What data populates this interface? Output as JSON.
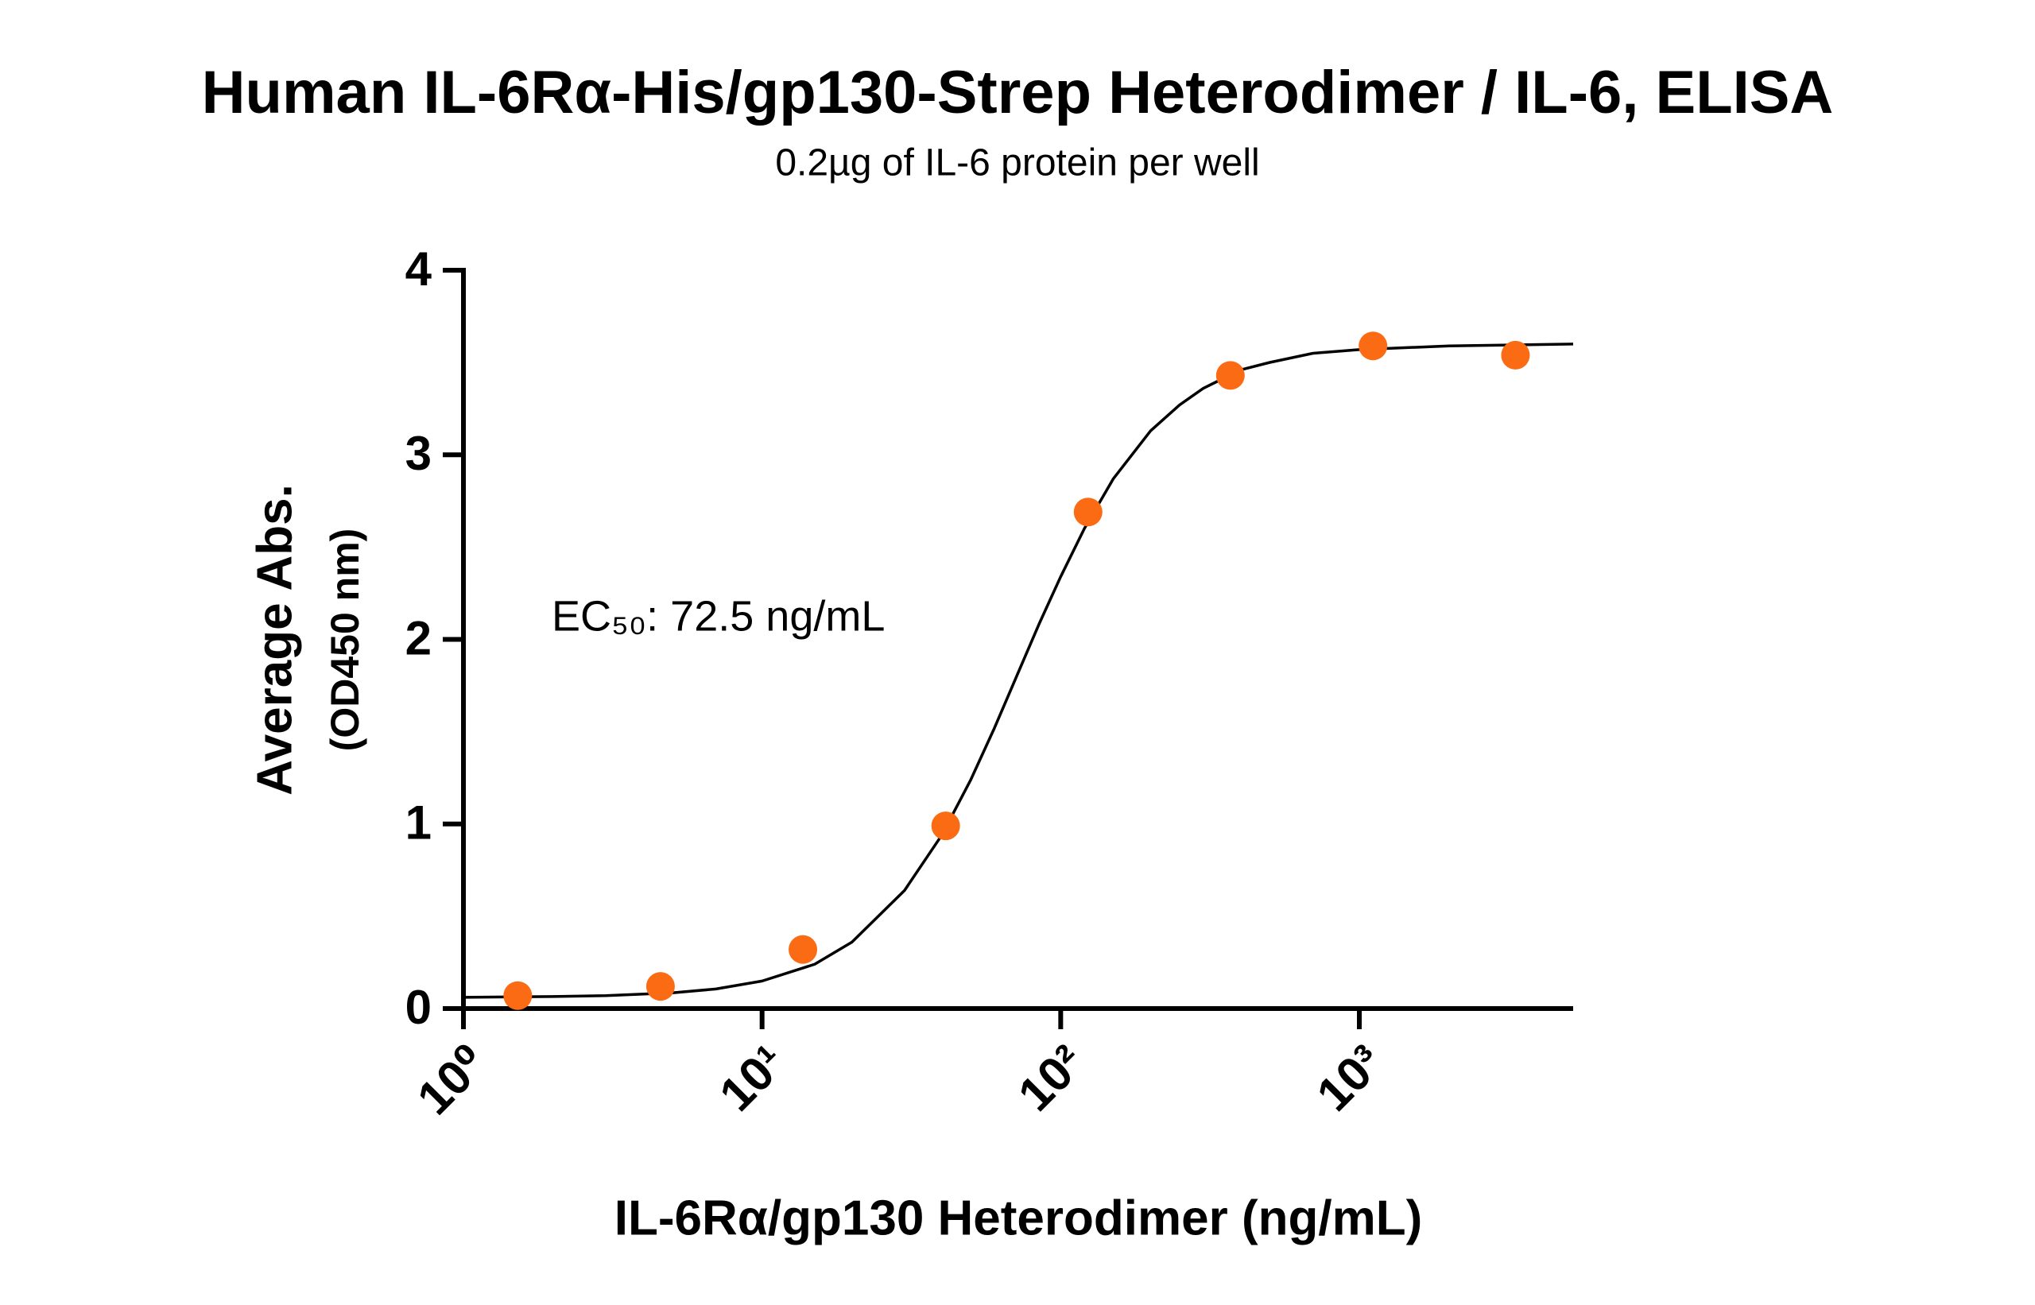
{
  "chart_data": {
    "type": "scatter",
    "title": "Human IL-6Rα-His/gp130-Strep Heterodimer / IL-6, ELISA",
    "subtitle": "0.2µg of IL-6 protein per well",
    "xlabel": "IL-6Rα/gp130 Heterodimer (ng/mL)",
    "ylabel": [
      "Average Abs.",
      "(OD450 nm)"
    ],
    "annotation": "EC₅₀: 72.5 ng/mL",
    "xscale": "log",
    "xlim": [
      1,
      5200
    ],
    "ylim": [
      0,
      4
    ],
    "xticks": [
      {
        "value": 1,
        "label": "10⁰"
      },
      {
        "value": 10,
        "label": "10¹"
      },
      {
        "value": 100,
        "label": "10²"
      },
      {
        "value": 1000,
        "label": "10³"
      }
    ],
    "yticks": [
      0,
      1,
      2,
      3,
      4
    ],
    "grid": false,
    "points": {
      "color": "#fa6b14",
      "x": [
        1.52,
        4.57,
        13.7,
        41.2,
        123.5,
        370,
        1111,
        3333
      ],
      "y": [
        0.07,
        0.12,
        0.32,
        0.99,
        2.69,
        3.43,
        3.59,
        3.54
      ]
    },
    "curve": {
      "color": "#000000",
      "x": [
        1,
        2,
        3,
        5,
        7,
        10,
        15,
        20,
        30,
        40,
        50,
        60,
        72.5,
        85,
        100,
        120,
        150,
        200,
        250,
        300,
        400,
        500,
        700,
        1000,
        2000,
        5200
      ],
      "y": [
        0.061,
        0.065,
        0.07,
        0.085,
        0.106,
        0.149,
        0.24,
        0.36,
        0.64,
        0.94,
        1.24,
        1.52,
        1.83,
        2.09,
        2.34,
        2.6,
        2.87,
        3.13,
        3.27,
        3.36,
        3.46,
        3.5,
        3.55,
        3.57,
        3.59,
        3.6
      ]
    }
  }
}
